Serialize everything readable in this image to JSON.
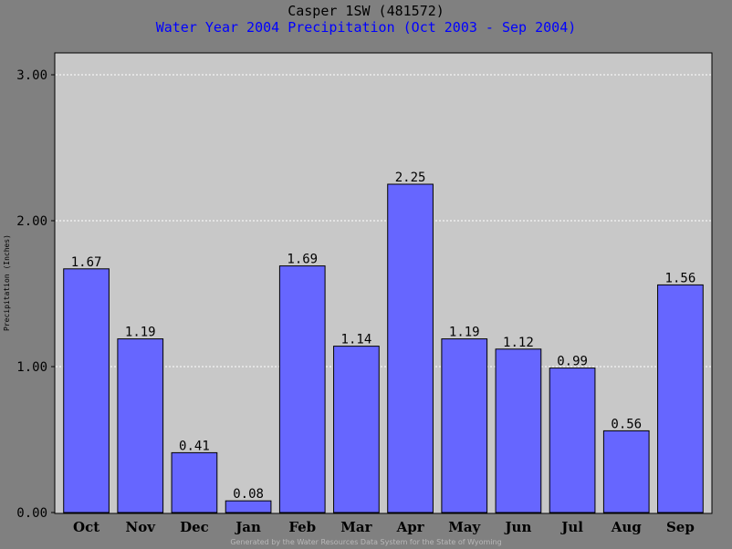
{
  "chart_data": {
    "type": "bar",
    "title": "Casper 1SW (481572)",
    "subtitle": "Water Year 2004 Precipitation (Oct 2003 - Sep 2004)",
    "xlabel": "",
    "ylabel": "Precipitation (Inches)",
    "categories": [
      "Oct",
      "Nov",
      "Dec",
      "Jan",
      "Feb",
      "Mar",
      "Apr",
      "May",
      "Jun",
      "Jul",
      "Aug",
      "Sep"
    ],
    "values": [
      1.67,
      1.19,
      0.41,
      0.08,
      1.69,
      1.14,
      2.25,
      1.19,
      1.12,
      0.99,
      0.56,
      1.56
    ],
    "data_labels": [
      "1.67",
      "1.19",
      "0.41",
      "0.08",
      "1.69",
      "1.14",
      "2.25",
      "1.19",
      "1.12",
      "0.99",
      "0.56",
      "1.56"
    ],
    "ylim": [
      0,
      3.0
    ],
    "yticks": [
      0,
      1,
      2,
      3
    ],
    "ytick_labels": [
      "0.00",
      "1.00",
      "2.00",
      "3.00"
    ],
    "grid": true,
    "colors": {
      "bar": "#6666ff",
      "plot_background": "#c8c8c8",
      "page_background": "#808080",
      "gridline": "#ffffff",
      "title": "#000000",
      "subtitle": "#0000ff"
    }
  },
  "footer": "Generated by the Water Resources Data System for the State of Wyoming"
}
